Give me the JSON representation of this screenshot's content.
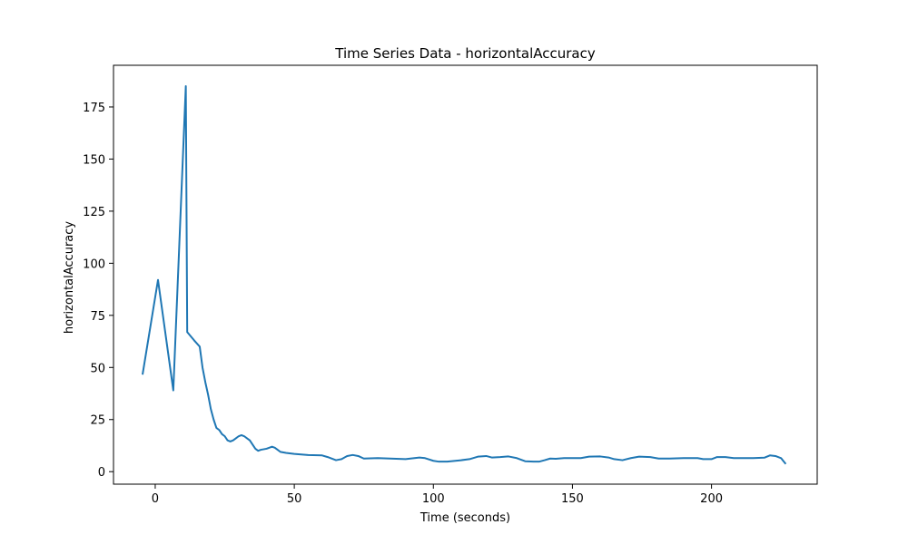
{
  "chart_data": {
    "type": "line",
    "title": "Time Series Data - horizontalAccuracy",
    "xlabel": "Time (seconds)",
    "ylabel": "horizontalAccuracy",
    "xlim": [
      -15,
      238
    ],
    "ylim": [
      -6,
      195
    ],
    "xticks": [
      0,
      50,
      100,
      150,
      200
    ],
    "yticks": [
      0,
      25,
      50,
      75,
      100,
      125,
      150,
      175
    ],
    "grid": false,
    "legend": "none",
    "series": [
      {
        "color": "#1f77b4",
        "x": [
          -4.5,
          1,
          6.5,
          11,
          11.5,
          14,
          16,
          17,
          18,
          19,
          20,
          21,
          22,
          23,
          24,
          25,
          26,
          27,
          28,
          29,
          30,
          31,
          32,
          33,
          34,
          35,
          36,
          37,
          38,
          40,
          42,
          43,
          44,
          45,
          47,
          50,
          55,
          60,
          62,
          65,
          67,
          69,
          71,
          73,
          75,
          80,
          90,
          95,
          97,
          100,
          102,
          105,
          110,
          113,
          116,
          119,
          121,
          124,
          127,
          130,
          133,
          136,
          138,
          140,
          142,
          144,
          147,
          150,
          153,
          156,
          160,
          163,
          165,
          168,
          171,
          174,
          178,
          181,
          185,
          190,
          195,
          197,
          200,
          202,
          205,
          208,
          211,
          215,
          219,
          221,
          223,
          225,
          226.5
        ],
        "y": [
          47,
          92,
          39,
          185,
          67,
          63,
          60,
          50,
          43,
          37,
          30,
          25,
          21,
          20,
          18,
          17,
          15,
          14.5,
          15,
          16,
          17,
          17.5,
          17,
          16,
          15,
          13,
          11,
          10,
          10.5,
          11,
          12,
          11.5,
          10.5,
          9.5,
          9,
          8.5,
          8,
          7.8,
          7,
          5.5,
          6,
          7.5,
          8,
          7.5,
          6.3,
          6.5,
          6,
          6.8,
          6.5,
          5.2,
          4.8,
          4.8,
          5.5,
          6,
          7.2,
          7.5,
          6.8,
          7,
          7.3,
          6.5,
          5,
          4.8,
          4.8,
          5.5,
          6.3,
          6.2,
          6.5,
          6.5,
          6.5,
          7.2,
          7.3,
          6.8,
          6,
          5.5,
          6.5,
          7.2,
          7,
          6.3,
          6.3,
          6.5,
          6.5,
          6,
          6,
          7,
          7,
          6.5,
          6.5,
          6.5,
          6.7,
          7.8,
          7.5,
          6.5,
          4
        ]
      }
    ]
  }
}
